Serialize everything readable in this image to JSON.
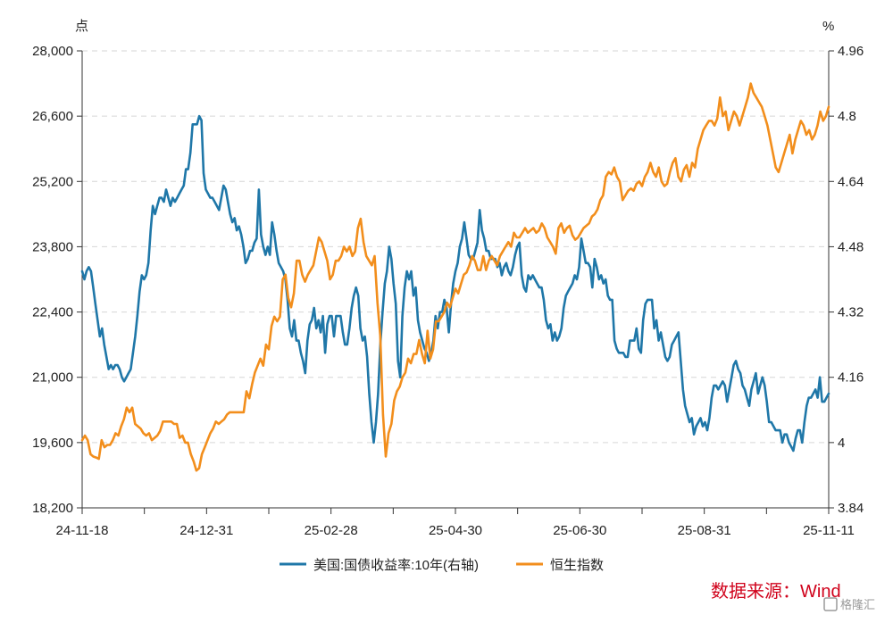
{
  "chart_data": {
    "type": "line",
    "left_unit": "点",
    "right_unit": "%",
    "left_axis": {
      "min": 18200,
      "max": 28000,
      "ticks": [
        "18,200",
        "19,600",
        "21,000",
        "22,400",
        "23,800",
        "25,200",
        "26,600",
        "28,000"
      ]
    },
    "right_axis": {
      "min": 3.84,
      "max": 4.96,
      "ticks": [
        "3.84",
        "4",
        "4.16",
        "4.32",
        "4.48",
        "4.64",
        "4.8",
        "4.96"
      ]
    },
    "x_ticks": [
      "24-11-18",
      "24-12-31",
      "25-02-28",
      "25-04-30",
      "25-06-30",
      "25-08-31",
      "25-11-11"
    ],
    "colors": {
      "us10y": "#1f77a8",
      "hsi": "#f28e1c",
      "grid": "#d6d6d6",
      "source": "#d0021b"
    },
    "series": [
      {
        "name": "美国:国债收益率:10年(右轴)",
        "axis": "right",
        "color": "#1f77a8",
        "values": [
          4.42,
          4.4,
          4.42,
          4.43,
          4.42,
          4.38,
          4.34,
          4.3,
          4.26,
          4.28,
          4.24,
          4.21,
          4.18,
          4.19,
          4.18,
          4.19,
          4.19,
          4.18,
          4.16,
          4.15,
          4.16,
          4.17,
          4.18,
          4.22,
          4.26,
          4.31,
          4.37,
          4.41,
          4.4,
          4.41,
          4.44,
          4.52,
          4.58,
          4.56,
          4.58,
          4.6,
          4.6,
          4.59,
          4.62,
          4.6,
          4.58,
          4.6,
          4.59,
          4.6,
          4.61,
          4.62,
          4.63,
          4.67,
          4.67,
          4.71,
          4.78,
          4.78,
          4.78,
          4.8,
          4.79,
          4.66,
          4.62,
          4.61,
          4.6,
          4.6,
          4.59,
          4.58,
          4.57,
          4.6,
          4.63,
          4.62,
          4.59,
          4.56,
          4.54,
          4.55,
          4.52,
          4.53,
          4.51,
          4.48,
          4.44,
          4.45,
          4.47,
          4.47,
          4.49,
          4.5,
          4.62,
          4.51,
          4.48,
          4.46,
          4.48,
          4.46,
          4.54,
          4.51,
          4.47,
          4.44,
          4.43,
          4.42,
          4.4,
          4.35,
          4.28,
          4.26,
          4.3,
          4.25,
          4.25,
          4.22,
          4.2,
          4.17,
          4.25,
          4.29,
          4.3,
          4.33,
          4.28,
          4.3,
          4.27,
          4.31,
          4.22,
          4.29,
          4.31,
          4.31,
          4.26,
          4.31,
          4.31,
          4.31,
          4.27,
          4.24,
          4.24,
          4.28,
          4.33,
          4.36,
          4.38,
          4.36,
          4.28,
          4.25,
          4.26,
          4.21,
          4.12,
          4.05,
          4.0,
          4.05,
          4.12,
          4.24,
          4.32,
          4.39,
          4.42,
          4.48,
          4.45,
          4.39,
          4.34,
          4.2,
          4.16,
          4.31,
          4.38,
          4.42,
          4.4,
          4.42,
          4.36,
          4.38,
          4.3,
          4.27,
          4.25,
          4.23,
          4.22,
          4.2,
          4.22,
          4.25,
          4.31,
          4.28,
          4.32,
          4.32,
          4.35,
          4.33,
          4.27,
          4.34,
          4.39,
          4.42,
          4.44,
          4.48,
          4.5,
          4.54,
          4.5,
          4.46,
          4.45,
          4.45,
          4.47,
          4.49,
          4.57,
          4.52,
          4.5,
          4.47,
          4.47,
          4.45,
          4.45,
          4.45,
          4.43,
          4.44,
          4.41,
          4.43,
          4.44,
          4.42,
          4.41,
          4.43,
          4.46,
          4.48,
          4.49,
          4.41,
          4.38,
          4.37,
          4.41,
          4.4,
          4.41,
          4.4,
          4.39,
          4.38,
          4.38,
          4.35,
          4.3,
          4.28,
          4.29,
          4.25,
          4.27,
          4.25,
          4.26,
          4.28,
          4.33,
          4.36,
          4.37,
          4.38,
          4.39,
          4.41,
          4.4,
          4.43,
          4.5,
          4.47,
          4.44,
          4.44,
          4.43,
          4.38,
          4.45,
          4.43,
          4.4,
          4.41,
          4.39,
          4.4,
          4.36,
          4.35,
          4.35,
          4.25,
          4.23,
          4.22,
          4.22,
          4.22,
          4.21,
          4.21,
          4.25,
          4.25,
          4.25,
          4.28,
          4.23,
          4.22,
          4.3,
          4.34,
          4.35,
          4.35,
          4.35,
          4.28,
          4.3,
          4.25,
          4.27,
          4.24,
          4.21,
          4.2,
          4.21,
          4.24,
          4.25,
          4.26,
          4.27,
          4.2,
          4.13,
          4.09,
          4.07,
          4.05,
          4.06,
          4.02,
          4.04,
          4.05,
          4.06,
          4.04,
          4.05,
          4.03,
          4.06,
          4.11,
          4.14,
          4.14,
          4.13,
          4.14,
          4.15,
          4.14,
          4.1,
          4.13,
          4.16,
          4.19,
          4.2,
          4.18,
          4.17,
          4.14,
          4.13,
          4.11,
          4.09,
          4.13,
          4.15,
          4.17,
          4.12,
          4.14,
          4.16,
          4.14,
          4.1,
          4.05,
          4.05,
          4.04,
          4.03,
          4.03,
          4.03,
          4.0,
          4.02,
          4.02,
          4.0,
          3.99,
          3.98,
          4.01,
          4.03,
          4.03,
          4.0,
          4.05,
          4.09,
          4.11,
          4.11,
          4.12,
          4.13,
          4.11,
          4.16,
          4.1,
          4.1,
          4.11,
          4.12
        ]
      },
      {
        "name": "恒生指数",
        "axis": "left",
        "color": "#f28e1c",
        "values": [
          19650,
          19750,
          19650,
          19350,
          19300,
          19280,
          19250,
          19650,
          19500,
          19550,
          19550,
          19650,
          19800,
          19750,
          19950,
          20100,
          20350,
          20250,
          20350,
          20000,
          19950,
          19900,
          19800,
          19750,
          19800,
          19650,
          19700,
          19750,
          19850,
          20050,
          20050,
          20050,
          20050,
          20000,
          20000,
          19700,
          19750,
          19600,
          19600,
          19350,
          19200,
          19000,
          19050,
          19350,
          19500,
          19650,
          19800,
          19900,
          20050,
          20000,
          20050,
          20100,
          20200,
          20250,
          20250,
          20250,
          20250,
          20250,
          20250,
          20700,
          20550,
          20850,
          21100,
          21250,
          21400,
          21250,
          21700,
          21600,
          22100,
          22300,
          22200,
          22300,
          23100,
          23200,
          22700,
          22500,
          22800,
          23500,
          23500,
          23200,
          23050,
          23200,
          23300,
          23400,
          23700,
          24000,
          23900,
          23700,
          23500,
          23100,
          23200,
          23500,
          23500,
          23600,
          23800,
          23700,
          23800,
          23600,
          23700,
          24200,
          24400,
          23900,
          23600,
          23500,
          23400,
          23600,
          22600,
          21900,
          20200,
          19300,
          19800,
          20000,
          20500,
          20700,
          20800,
          21000,
          21100,
          21400,
          21300,
          21500,
          21500,
          21800,
          21500,
          21300,
          22000,
          21400,
          21600,
          22200,
          22200,
          22300,
          22400,
          22600,
          22500,
          22700,
          22900,
          22800,
          23000,
          23200,
          23250,
          23400,
          23600,
          23500,
          23300,
          23300,
          23600,
          23300,
          23500,
          23600,
          23500,
          23400,
          23600,
          23700,
          23800,
          23900,
          23800,
          24100,
          24000,
          24000,
          24100,
          24200,
          24100,
          24150,
          24200,
          24100,
          24150,
          24300,
          24200,
          24000,
          23900,
          23800,
          23650,
          24200,
          24300,
          24100,
          24200,
          24250,
          24050,
          23950,
          24000,
          24100,
          24200,
          24250,
          24300,
          24450,
          24500,
          24600,
          24800,
          24900,
          25300,
          25400,
          25350,
          25500,
          25300,
          25200,
          24800,
          24900,
          25000,
          25050,
          25000,
          25150,
          25200,
          25100,
          25300,
          25400,
          25600,
          25400,
          25300,
          25500,
          25200,
          25100,
          25150,
          25400,
          25600,
          25700,
          25300,
          25200,
          25450,
          25550,
          25300,
          25600,
          25500,
          25900,
          26100,
          26300,
          26400,
          26500,
          26500,
          26400,
          26550,
          27000,
          26600,
          26700,
          26300,
          26500,
          26700,
          26600,
          26400,
          26600,
          26800,
          27000,
          27300,
          27100,
          27000,
          26900,
          26800,
          26600,
          26400,
          26100,
          25800,
          25500,
          25400,
          25600,
          25800,
          26000,
          26200,
          25800,
          26100,
          26300,
          26500,
          26400,
          26200,
          26300,
          26100,
          26200,
          26400,
          26700,
          26500,
          26600,
          26800
        ]
      }
    ]
  },
  "source_text": "数据来源：Wind",
  "watermark_text": "格隆汇"
}
